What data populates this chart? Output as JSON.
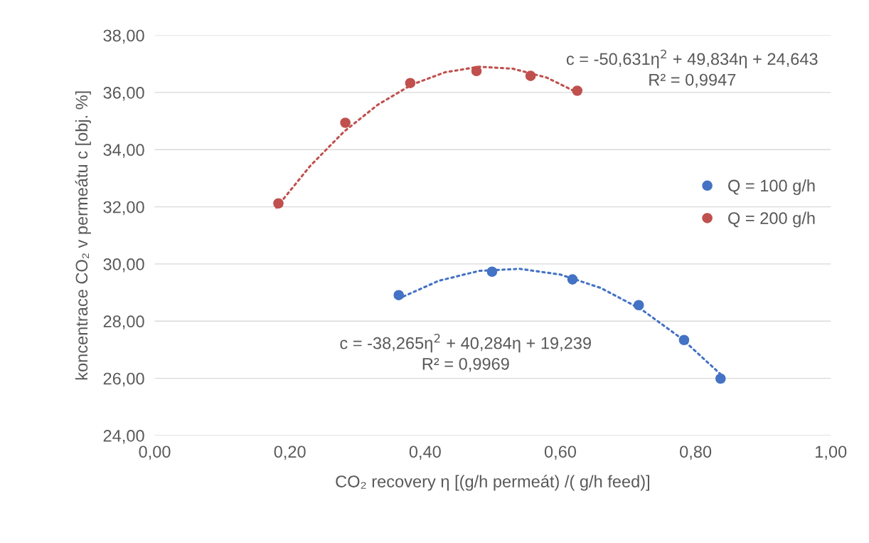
{
  "chart_data": {
    "type": "scatter",
    "xlabel": "CO₂ recovery η [(g/h permeát) /( g/h feed)]",
    "ylabel": "koncentrace CO₂ v permeátu c [obj. %]",
    "xlim": [
      0,
      1
    ],
    "xticks": [
      {
        "value": 0,
        "label": "0,00"
      },
      {
        "value": 0.2,
        "label": "0,20"
      },
      {
        "value": 0.4,
        "label": "0,40"
      },
      {
        "value": 0.6,
        "label": "0,60"
      },
      {
        "value": 0.8,
        "label": "0,80"
      },
      {
        "value": 1,
        "label": "1,00"
      }
    ],
    "ylim": [
      24,
      38
    ],
    "yticks": [
      {
        "value": 24,
        "label": "24,00"
      },
      {
        "value": 26,
        "label": "26,00"
      },
      {
        "value": 28,
        "label": "28,00"
      },
      {
        "value": 30,
        "label": "30,00"
      },
      {
        "value": 32,
        "label": "32,00"
      },
      {
        "value": 34,
        "label": "34,00"
      },
      {
        "value": 36,
        "label": "36,00"
      },
      {
        "value": 38,
        "label": "38,00"
      }
    ],
    "grid": "y",
    "legend": "right",
    "marker": "circle",
    "series": [
      {
        "name": "Q = 100 g/h",
        "color": "#4472c4",
        "x": [
          0.361,
          0.499,
          0.618,
          0.716,
          0.783,
          0.837
        ],
        "values": [
          28.91,
          29.73,
          29.46,
          28.56,
          27.34,
          25.99
        ]
      },
      {
        "name": "Q = 200 g/h",
        "color": "#c0504d",
        "x": [
          0.183,
          0.282,
          0.378,
          0.476,
          0.556,
          0.625
        ],
        "values": [
          32.12,
          34.94,
          36.33,
          36.75,
          36.58,
          36.06
        ]
      },
      {
        "type": "line",
        "marker": "none",
        "line_style": "dotted",
        "color": "#4472c4",
        "x": [
          0.36,
          0.42,
          0.48,
          0.54,
          0.6,
          0.66,
          0.72,
          0.78,
          0.84
        ],
        "values": [
          28.78,
          29.41,
          29.76,
          29.83,
          29.63,
          29.16,
          28.41,
          27.38,
          26.08
        ]
      },
      {
        "type": "line",
        "marker": "none",
        "line_style": "dotted",
        "color": "#c0504d",
        "x": [
          0.18,
          0.23,
          0.28,
          0.33,
          0.38,
          0.43,
          0.48,
          0.53,
          0.58,
          0.63
        ],
        "values": [
          31.97,
          33.43,
          34.63,
          35.57,
          36.27,
          36.71,
          36.9,
          36.83,
          36.52,
          35.94
        ]
      }
    ],
    "annotations": [
      "c = -50,631η$^{2}$ + 49,834η + 24,643\nR² = 0,9947",
      "c = -38,265η$^{2}$ + 40,284η + 19,239\nR² = 0,9969"
    ]
  }
}
